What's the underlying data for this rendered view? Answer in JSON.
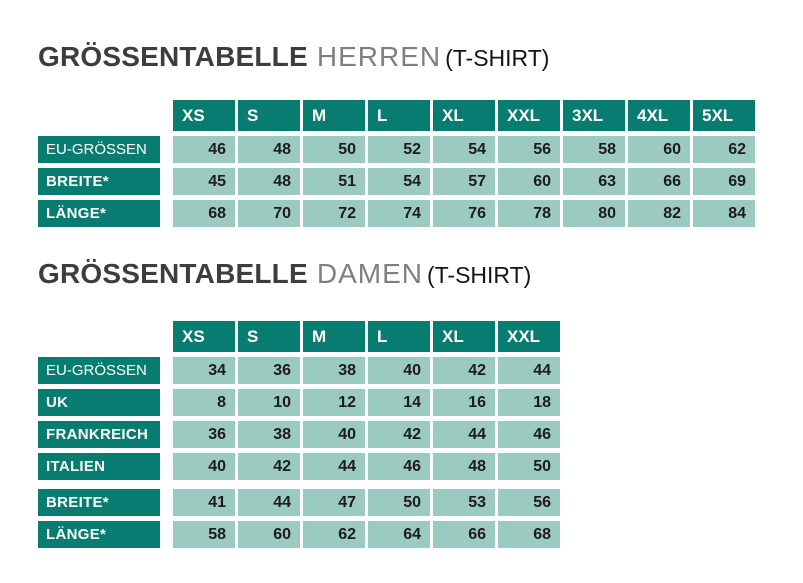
{
  "colors": {
    "header_teal": "#087c71",
    "cell_light_teal": "#9bcac1",
    "title_dark_gray": "#3d3d3d",
    "title_light_gray": "#7f7f7f",
    "product_text": "#141414",
    "number_text": "#1c1c1c",
    "background": "#ffffff"
  },
  "tables": [
    {
      "id": "herren",
      "title": {
        "main": "GRÖSSENTABELLE",
        "category": "HERREN",
        "product": "(T-SHIRT)"
      },
      "columns": [
        "XS",
        "S",
        "M",
        "L",
        "XL",
        "XXL",
        "3XL",
        "4XL",
        "5XL"
      ],
      "rows": [
        {
          "label": "EU-GRÖSSEN",
          "style": "light",
          "gap_before": false,
          "values": [
            46,
            48,
            50,
            52,
            54,
            56,
            58,
            60,
            62
          ]
        },
        {
          "label": "BREITE*",
          "style": "bold",
          "gap_before": false,
          "values": [
            45,
            48,
            51,
            54,
            57,
            60,
            63,
            66,
            69
          ]
        },
        {
          "label": "LÄNGE*",
          "style": "bold",
          "gap_before": false,
          "values": [
            68,
            70,
            72,
            74,
            76,
            78,
            80,
            82,
            84
          ]
        }
      ]
    },
    {
      "id": "damen",
      "title": {
        "main": "GRÖSSENTABELLE",
        "category": "DAMEN",
        "product": "(T-SHIRT)"
      },
      "columns": [
        "XS",
        "S",
        "M",
        "L",
        "XL",
        "XXL"
      ],
      "rows": [
        {
          "label": "EU-GRÖSSEN",
          "style": "light",
          "gap_before": false,
          "values": [
            34,
            36,
            38,
            40,
            42,
            44
          ]
        },
        {
          "label": "UK",
          "style": "bold",
          "gap_before": false,
          "values": [
            8,
            10,
            12,
            14,
            16,
            18
          ]
        },
        {
          "label": "FRANKREICH",
          "style": "bold",
          "gap_before": false,
          "values": [
            36,
            38,
            40,
            42,
            44,
            46
          ]
        },
        {
          "label": "ITALIEN",
          "style": "bold",
          "gap_before": false,
          "values": [
            40,
            42,
            44,
            46,
            48,
            50
          ]
        },
        {
          "label": "BREITE*",
          "style": "bold",
          "gap_before": true,
          "values": [
            41,
            44,
            47,
            50,
            53,
            56
          ]
        },
        {
          "label": "LÄNGE*",
          "style": "bold",
          "gap_before": false,
          "values": [
            58,
            60,
            62,
            64,
            66,
            68
          ]
        }
      ]
    }
  ]
}
